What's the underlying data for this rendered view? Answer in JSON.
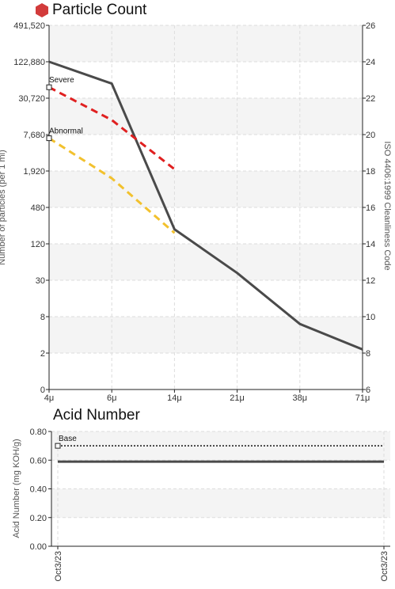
{
  "colors": {
    "hexagon_icon": "#d23b3b",
    "particle_line": "#4a4a4a",
    "severe_line": "#e02020",
    "abnormal_line": "#f2c12e",
    "acid_line": "#4a4a4a",
    "base_line": "#333333",
    "band": "#f4f4f4",
    "grid": "#dddddd"
  },
  "chart_data": [
    {
      "type": "line",
      "title": "Particle Count",
      "title_icon": "hexagon-icon",
      "xlabel": "",
      "ylabel": "Number of particles (per 1 ml)",
      "y2label": "ISO 4406:1999 Cleanliness Code",
      "categories": [
        "4μ",
        "6μ",
        "14μ",
        "21μ",
        "38μ",
        "71μ"
      ],
      "y_ticks": [
        "0",
        "2",
        "8",
        "30",
        "120",
        "480",
        "1,920",
        "7,680",
        "30,720",
        "122,880",
        "491,520"
      ],
      "y2_ticks": [
        "6",
        "8",
        "10",
        "12",
        "14",
        "16",
        "18",
        "20",
        "22",
        "24",
        "26"
      ],
      "y_scale": "log (ISO code levels)",
      "ylim_iso": [
        6,
        26
      ],
      "series": [
        {
          "values_iso": [
            24.0,
            22.8,
            14.8,
            12.4,
            9.6,
            8.2
          ]
        },
        {
          "name": "Severe",
          "values_iso": [
            22.6,
            20.8,
            18.1
          ],
          "style": "dashed"
        },
        {
          "name": "Abnormal",
          "values_iso": [
            19.8,
            17.6,
            14.6
          ],
          "style": "dashed"
        }
      ],
      "annotations": [
        "Severe",
        "Abnormal"
      ],
      "grid": true,
      "legend": "none"
    },
    {
      "type": "line",
      "title": "Acid Number",
      "xlabel": "",
      "ylabel": "Acid Number (mg KOH/g)",
      "categories": [
        "Oct3/23",
        "Oct3/23"
      ],
      "y_ticks": [
        "0.00",
        "0.20",
        "0.40",
        "0.60",
        "0.80"
      ],
      "ylim": [
        0,
        0.8
      ],
      "series": [
        {
          "values": [
            0.59,
            0.59
          ]
        },
        {
          "name": "Base",
          "values": [
            0.7,
            0.7
          ],
          "style": "dotted"
        }
      ],
      "annotations": [
        "Base"
      ],
      "grid": true,
      "legend": "none"
    }
  ]
}
